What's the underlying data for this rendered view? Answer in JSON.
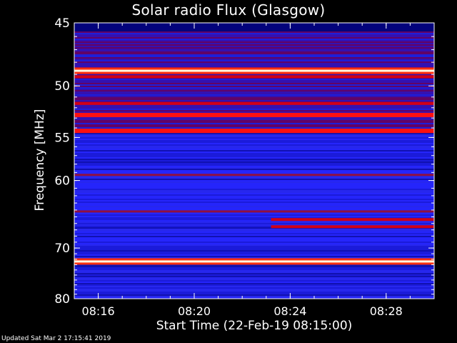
{
  "chart_data": {
    "type": "heatmap",
    "title": "Solar radio Flux (Glasgow)",
    "xlabel": "Start Time (22-Feb-19 08:15:00)",
    "ylabel": "Frequency [MHz]",
    "x_ticks": [
      "08:16",
      "08:20",
      "08:24",
      "08:28"
    ],
    "x_tick_minutes": [
      1,
      5,
      9,
      13
    ],
    "xlim_minutes_after_start": [
      0,
      15
    ],
    "y_ticks": [
      45,
      50,
      55,
      60,
      70,
      80
    ],
    "ylim": [
      45,
      80
    ],
    "y_scale": "reciprocal",
    "colormap": [
      "#00007a",
      "#1010d0",
      "#3030ff",
      "#a00030",
      "#e00010",
      "#ff4020",
      "#ffd080",
      "#ffffff"
    ],
    "bands": [
      {
        "freq_mhz": 48.7,
        "level": "white"
      },
      {
        "freq_mhz": 49.2,
        "level": "red"
      },
      {
        "freq_mhz": 51.6,
        "level": "red"
      },
      {
        "freq_mhz": 52.7,
        "level": "bright-red"
      },
      {
        "freq_mhz": 54.3,
        "level": "bright-red"
      },
      {
        "freq_mhz": 59.3,
        "level": "dark-red"
      },
      {
        "freq_mhz": 64.2,
        "level": "dark-red"
      },
      {
        "freq_mhz": 65.4,
        "level": "red",
        "from_minute": 8.2
      },
      {
        "freq_mhz": 66.5,
        "level": "red",
        "from_minute": 8.2
      },
      {
        "freq_mhz": 72.4,
        "level": "white"
      }
    ],
    "grid": false
  },
  "footer": "Updated Sat Mar  2 17:15:41 2019"
}
